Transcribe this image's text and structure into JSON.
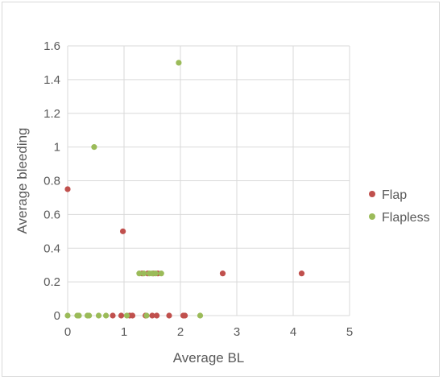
{
  "chart_data": {
    "type": "scatter",
    "title": "",
    "xlabel": "Average BL",
    "ylabel": "Average bleeding",
    "xlim": [
      0,
      5
    ],
    "ylim": [
      0,
      1.6
    ],
    "x_ticks": [
      "0",
      "1",
      "2",
      "3",
      "4",
      "5"
    ],
    "y_ticks": [
      "0",
      "0.2",
      "0.4",
      "0.6",
      "0.8",
      "1",
      "1.2",
      "1.4",
      "1.6"
    ],
    "x_tick_values": [
      0,
      1,
      2,
      3,
      4,
      5
    ],
    "y_tick_values": [
      0,
      0.2,
      0.4,
      0.6,
      0.8,
      1,
      1.2,
      1.4,
      1.6
    ],
    "grid": true,
    "legend_position": "right",
    "series": [
      {
        "name": "Flap",
        "color": "#c0504d",
        "points": [
          [
            0,
            0.75
          ],
          [
            0.98,
            0.5
          ],
          [
            2.75,
            0.25
          ],
          [
            4.15,
            0.25
          ],
          [
            1.32,
            0.25
          ],
          [
            1.42,
            0.25
          ],
          [
            1.52,
            0.25
          ],
          [
            1.6,
            0.25
          ],
          [
            0.8,
            0
          ],
          [
            0.95,
            0
          ],
          [
            1.1,
            0
          ],
          [
            1.15,
            0
          ],
          [
            1.38,
            0
          ],
          [
            1.5,
            0
          ],
          [
            1.58,
            0
          ],
          [
            1.8,
            0
          ],
          [
            2.05,
            0
          ],
          [
            2.08,
            0
          ]
        ]
      },
      {
        "name": "Flapless",
        "color": "#9bbb59",
        "points": [
          [
            1.97,
            1.5
          ],
          [
            0.47,
            1.0
          ],
          [
            1.27,
            0.25
          ],
          [
            1.35,
            0.25
          ],
          [
            1.45,
            0.25
          ],
          [
            1.5,
            0.25
          ],
          [
            1.56,
            0.25
          ],
          [
            1.66,
            0.25
          ],
          [
            0,
            0
          ],
          [
            0.17,
            0
          ],
          [
            0.2,
            0
          ],
          [
            0.35,
            0
          ],
          [
            0.38,
            0
          ],
          [
            0.55,
            0
          ],
          [
            0.68,
            0
          ],
          [
            1.05,
            0
          ],
          [
            1.4,
            0
          ],
          [
            2.35,
            0
          ]
        ]
      }
    ]
  }
}
